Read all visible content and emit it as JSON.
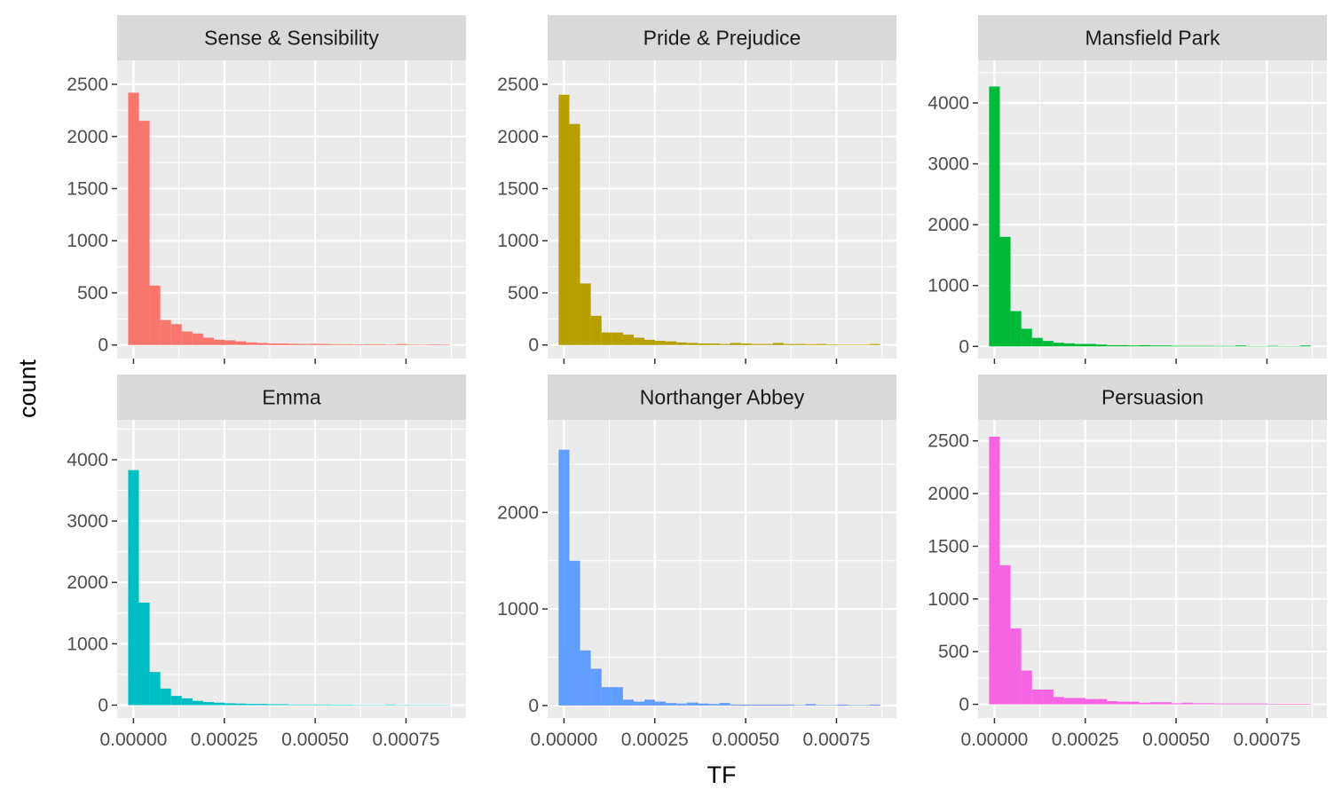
{
  "chart_data": {
    "type": "bar",
    "xlabel": "TF",
    "ylabel": "count",
    "x_tick_labels": [
      "0.00000",
      "0.00025",
      "0.00050",
      "0.00075"
    ],
    "x_ticks": [
      0,
      0.00025,
      0.0005,
      0.00075
    ],
    "xlim": [
      -4.5e-05,
      0.000915
    ],
    "bin_width": 2.95e-05,
    "bin_start": -1.47e-05,
    "panels": [
      {
        "name": "Sense & Sensibility",
        "color": "#F8766D",
        "ylim": [
          -130,
          2730
        ],
        "y_ticks": [
          0,
          500,
          1000,
          1500,
          2000,
          2500
        ],
        "values": [
          2420,
          2150,
          570,
          240,
          200,
          130,
          110,
          70,
          50,
          45,
          35,
          25,
          20,
          15,
          15,
          12,
          10,
          12,
          10,
          8,
          8,
          6,
          8,
          8,
          5,
          10,
          5,
          4,
          6,
          5
        ]
      },
      {
        "name": "Pride & Prejudice",
        "color": "#B79F00",
        "ylim": [
          -130,
          2730
        ],
        "y_ticks": [
          0,
          500,
          1000,
          1500,
          2000,
          2500
        ],
        "values": [
          2400,
          2120,
          590,
          280,
          120,
          120,
          100,
          70,
          50,
          40,
          35,
          25,
          20,
          15,
          15,
          10,
          20,
          15,
          10,
          10,
          20,
          10,
          10,
          8,
          10,
          6,
          5,
          5,
          5,
          10
        ]
      },
      {
        "name": "Mansfield Park",
        "color": "#00BA38",
        "ylim": [
          -200,
          4700
        ],
        "y_ticks": [
          0,
          1000,
          2000,
          3000,
          4000
        ],
        "values": [
          4270,
          1800,
          580,
          290,
          140,
          90,
          60,
          50,
          40,
          40,
          30,
          20,
          20,
          15,
          20,
          15,
          15,
          10,
          10,
          10,
          10,
          8,
          8,
          15,
          5,
          5,
          10,
          5,
          5,
          15
        ]
      },
      {
        "name": "Emma",
        "color": "#00BFC4",
        "ylim": [
          -210,
          4650
        ],
        "y_ticks": [
          0,
          1000,
          2000,
          3000,
          4000
        ],
        "values": [
          3830,
          1670,
          540,
          270,
          150,
          110,
          70,
          50,
          40,
          30,
          25,
          20,
          20,
          15,
          15,
          10,
          10,
          10,
          10,
          8,
          8,
          5,
          5,
          5,
          10,
          5,
          5,
          5,
          5,
          5
        ]
      },
      {
        "name": "Northanger Abbey",
        "color": "#619CFF",
        "ylim": [
          -130,
          2960
        ],
        "y_ticks": [
          0,
          1000,
          2000
        ],
        "values": [
          2650,
          1500,
          570,
          380,
          190,
          190,
          60,
          40,
          60,
          40,
          25,
          20,
          30,
          20,
          15,
          25,
          10,
          10,
          10,
          10,
          10,
          10,
          5,
          15,
          5,
          5,
          10,
          5,
          5,
          10
        ]
      },
      {
        "name": "Persuasion",
        "color": "#F564E3",
        "ylim": [
          -130,
          2700
        ],
        "y_ticks": [
          0,
          500,
          1000,
          1500,
          2000,
          2500
        ],
        "values": [
          2540,
          1320,
          720,
          320,
          140,
          140,
          70,
          60,
          60,
          50,
          50,
          30,
          25,
          25,
          15,
          20,
          20,
          10,
          15,
          10,
          10,
          8,
          8,
          8,
          8,
          8,
          5,
          5,
          5,
          5
        ]
      }
    ]
  }
}
